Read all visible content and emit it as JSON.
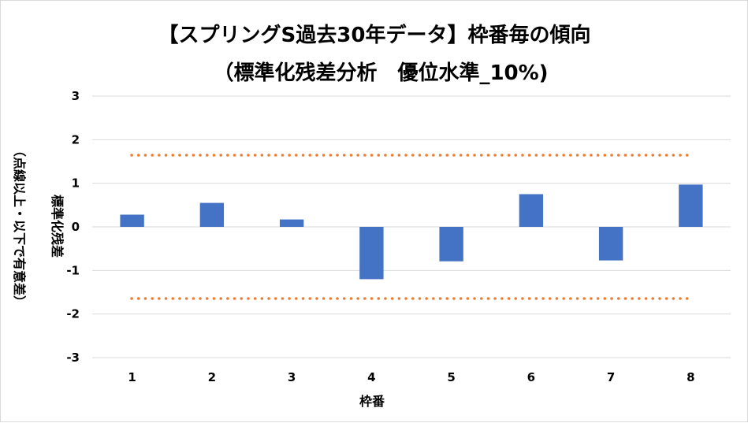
{
  "chart_data": {
    "type": "bar",
    "title_line1": "【スプリングS過去30年データ】枠番毎の傾向",
    "title_line2": "（標準化残差分析　優位水準_10%)",
    "xlabel": "枠番",
    "ylabel_line1": "標準化残差",
    "ylabel_line2": "（点線以上・以下で有意差）",
    "categories": [
      "1",
      "2",
      "3",
      "4",
      "5",
      "6",
      "7",
      "8"
    ],
    "values": [
      0.28,
      0.55,
      0.17,
      -1.2,
      -0.79,
      0.75,
      -0.77,
      0.97
    ],
    "ylim": [
      -3,
      3
    ],
    "yticks": [
      3,
      2,
      1,
      0,
      -1,
      -2,
      -3
    ],
    "threshold_upper": 1.645,
    "threshold_lower": -1.645,
    "grid": true,
    "legend": "none",
    "bar_color": "#4472c4",
    "threshold_color": "#ed7d31",
    "grid_color": "#d9d9d9"
  }
}
